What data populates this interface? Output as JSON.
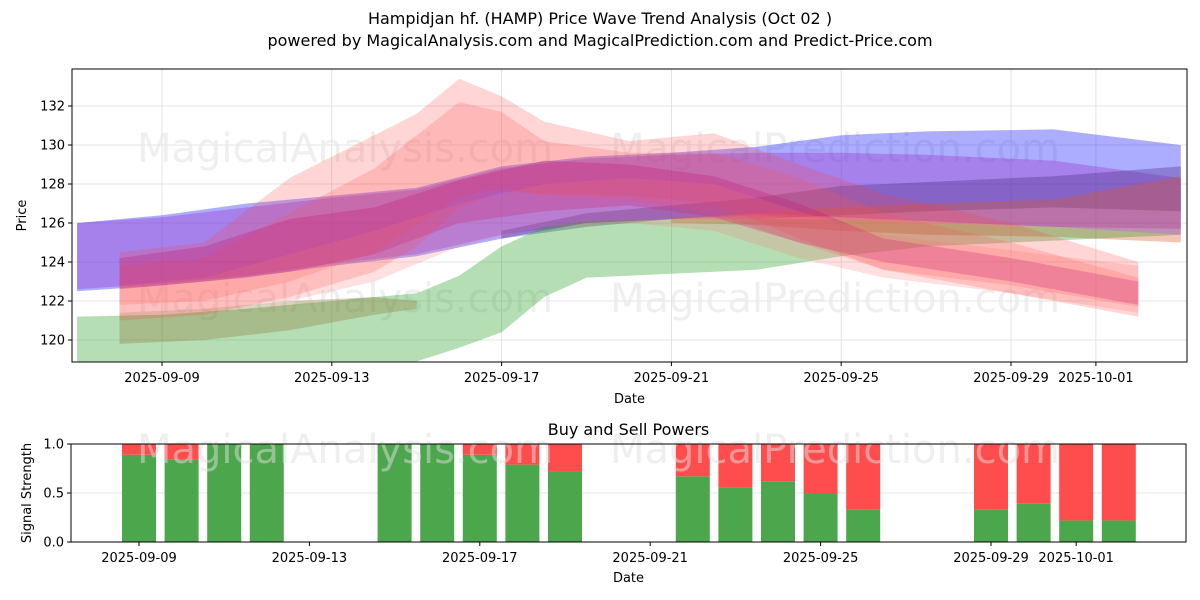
{
  "title": "Hampidjan hf. (HAMP) Price Wave Trend Analysis (Oct 02 )",
  "subtitle": "powered by MagicalAnalysis.com and MagicalPrediction.com and Predict-Price.com",
  "watermarks": [
    "MagicalAnalysis.com",
    "MagicalPrediction.com"
  ],
  "chart_data": [
    {
      "type": "area",
      "title": "",
      "xlabel": "Date",
      "ylabel": "Price",
      "ylim": [
        118.9,
        133.8
      ],
      "xlim": [
        "2025-09-06.8",
        "2025-10-03.2"
      ],
      "yticks": [
        120,
        122,
        124,
        126,
        128,
        130,
        132
      ],
      "xticks": [
        "2025-09-09",
        "2025-09-13",
        "2025-09-17",
        "2025-09-21",
        "2025-09-25",
        "2025-09-29",
        "2025-10-01"
      ],
      "grid": true,
      "series": [
        {
          "name": "blue-band",
          "color": "#0000ff",
          "opacity": 0.32,
          "x": [
            "2025-09-07",
            "2025-09-09",
            "2025-09-11",
            "2025-09-13",
            "2025-09-15",
            "2025-09-17",
            "2025-09-19",
            "2025-09-21",
            "2025-09-23",
            "2025-09-25",
            "2025-09-27",
            "2025-09-30",
            "2025-10-03"
          ],
          "upper": [
            126.0,
            126.4,
            127.0,
            127.4,
            127.8,
            128.9,
            129.4,
            129.6,
            129.9,
            130.5,
            130.7,
            130.8,
            130.0
          ],
          "lower": [
            122.5,
            122.8,
            123.2,
            123.8,
            124.3,
            125.2,
            126.0,
            126.2,
            126.5,
            126.3,
            126.1,
            125.8,
            125.4
          ]
        },
        {
          "name": "purple-band-1",
          "color": "#9b30c8",
          "opacity": 0.35,
          "x": [
            "2025-09-07",
            "2025-09-09",
            "2025-09-11",
            "2025-09-13",
            "2025-09-15",
            "2025-09-17",
            "2025-09-19",
            "2025-09-21",
            "2025-09-23",
            "2025-09-25",
            "2025-09-27",
            "2025-09-30",
            "2025-10-03"
          ],
          "upper": [
            126.0,
            126.3,
            126.8,
            127.3,
            127.7,
            128.8,
            129.3,
            129.5,
            129.6,
            129.6,
            129.5,
            129.2,
            128.3
          ],
          "lower": [
            122.6,
            122.9,
            123.3,
            123.9,
            124.4,
            125.4,
            126.0,
            126.2,
            126.4,
            126.2,
            126.0,
            125.8,
            125.7
          ]
        },
        {
          "name": "dark-purple-band",
          "color": "#4b2a80",
          "opacity": 0.35,
          "x": [
            "2025-09-17",
            "2025-09-19",
            "2025-09-21",
            "2025-09-23",
            "2025-09-25",
            "2025-09-27",
            "2025-09-30",
            "2025-10-03"
          ],
          "upper": [
            125.6,
            126.5,
            126.9,
            127.3,
            127.9,
            128.1,
            128.4,
            128.9
          ],
          "lower": [
            125.2,
            125.8,
            126.2,
            126.2,
            126.4,
            126.6,
            126.8,
            126.6
          ]
        },
        {
          "name": "orange-band",
          "color": "#e0552a",
          "opacity": 0.35,
          "x": [
            "2025-09-21",
            "2025-09-23",
            "2025-09-25",
            "2025-09-27",
            "2025-09-30",
            "2025-10-03"
          ],
          "upper": [
            126.3,
            126.5,
            126.8,
            127.0,
            127.2,
            128.4
          ],
          "lower": [
            126.0,
            125.9,
            125.6,
            125.4,
            125.3,
            125.0
          ]
        },
        {
          "name": "green-band",
          "color": "#2ca02c",
          "opacity": 0.35,
          "x": [
            "2025-09-07",
            "2025-09-09",
            "2025-09-11",
            "2025-09-13",
            "2025-09-15",
            "2025-09-16",
            "2025-09-17",
            "2025-09-18",
            "2025-09-19",
            "2025-09-21",
            "2025-09-23",
            "2025-09-25",
            "2025-09-27",
            "2025-09-30",
            "2025-10-03"
          ],
          "upper": [
            121.2,
            121.3,
            121.6,
            122.0,
            122.4,
            123.3,
            124.8,
            125.8,
            126.1,
            126.2,
            126.2,
            126.2,
            126.0,
            125.8,
            125.4
          ],
          "lower": [
            118.9,
            118.9,
            118.9,
            118.9,
            118.9,
            119.6,
            120.4,
            122.2,
            123.2,
            123.4,
            123.6,
            124.3,
            124.8,
            125.1,
            125.4
          ]
        },
        {
          "name": "olive-band",
          "color": "#8b6a2a",
          "opacity": 0.3,
          "x": [
            "2025-09-08",
            "2025-09-10",
            "2025-09-12",
            "2025-09-14",
            "2025-09-15"
          ],
          "upper": [
            121.4,
            121.6,
            122.0,
            122.2,
            122.0
          ],
          "lower": [
            119.8,
            120.0,
            120.5,
            121.3,
            121.6
          ]
        },
        {
          "name": "red-band-1",
          "color": "#ff4040",
          "opacity": 0.22,
          "x": [
            "2025-09-08",
            "2025-09-10",
            "2025-09-12",
            "2025-09-14",
            "2025-09-15",
            "2025-09-16",
            "2025-09-17",
            "2025-09-18",
            "2025-09-20",
            "2025-09-22",
            "2025-09-24",
            "2025-09-26",
            "2025-09-29",
            "2025-10-02"
          ],
          "upper": [
            124.5,
            125.0,
            128.3,
            130.5,
            131.6,
            133.4,
            132.5,
            131.2,
            130.2,
            130.6,
            129.0,
            127.5,
            126.0,
            124.0
          ],
          "lower": [
            121.0,
            121.3,
            122.2,
            123.5,
            124.8,
            126.8,
            127.6,
            127.5,
            127.4,
            127.0,
            125.2,
            123.6,
            122.4,
            121.2
          ]
        },
        {
          "name": "red-band-2",
          "color": "#ff5050",
          "opacity": 0.22,
          "x": [
            "2025-09-08",
            "2025-09-10",
            "2025-09-12",
            "2025-09-14",
            "2025-09-16",
            "2025-09-17",
            "2025-09-18",
            "2025-09-20",
            "2025-09-22",
            "2025-09-24",
            "2025-09-26",
            "2025-09-29",
            "2025-10-02"
          ],
          "upper": [
            123.8,
            124.2,
            126.5,
            128.8,
            132.2,
            131.7,
            130.2,
            129.6,
            129.6,
            128.3,
            126.5,
            125.0,
            123.2
          ],
          "lower": [
            121.8,
            122.0,
            123.0,
            124.5,
            127.3,
            127.8,
            127.4,
            127.2,
            126.5,
            125.0,
            123.6,
            122.8,
            121.7
          ]
        },
        {
          "name": "magenta-band",
          "color": "#c0207a",
          "opacity": 0.32,
          "x": [
            "2025-09-08",
            "2025-09-10",
            "2025-09-12",
            "2025-09-14",
            "2025-09-16",
            "2025-09-18",
            "2025-09-20",
            "2025-09-22",
            "2025-09-24",
            "2025-09-26",
            "2025-09-29",
            "2025-10-02"
          ],
          "upper": [
            124.2,
            124.8,
            126.2,
            126.8,
            128.2,
            129.2,
            129.0,
            128.4,
            127.0,
            125.2,
            124.2,
            123.0
          ],
          "lower": [
            122.6,
            123.0,
            123.5,
            124.4,
            126.0,
            126.6,
            126.9,
            126.3,
            125.0,
            124.0,
            123.0,
            121.8
          ]
        },
        {
          "name": "pink-band",
          "color": "#ff7070",
          "opacity": 0.22,
          "x": [
            "2025-09-08",
            "2025-09-10",
            "2025-09-12",
            "2025-09-14",
            "2025-09-16",
            "2025-09-18",
            "2025-09-20",
            "2025-09-22",
            "2025-09-24",
            "2025-09-26",
            "2025-09-29",
            "2025-10-02"
          ],
          "upper": [
            122.8,
            123.2,
            124.4,
            125.6,
            127.0,
            128.0,
            128.3,
            128.0,
            126.6,
            125.4,
            124.6,
            123.8
          ],
          "lower": [
            121.4,
            121.6,
            122.0,
            123.0,
            124.8,
            125.8,
            126.0,
            125.6,
            124.2,
            123.2,
            122.4,
            121.4
          ]
        }
      ]
    },
    {
      "type": "bar",
      "title": "Buy and Sell Powers",
      "xlabel": "Date",
      "ylabel": "Signal Strength",
      "ylim": [
        0,
        1.0
      ],
      "yticks": [
        "0.0",
        "0.5",
        "1.0"
      ],
      "xticks": [
        "2025-09-09",
        "2025-09-13",
        "2025-09-17",
        "2025-09-21",
        "2025-09-25",
        "2025-09-29",
        "2025-10-01"
      ],
      "grid": true,
      "categories": [
        "2025-09-09",
        "2025-09-10",
        "2025-09-11",
        "2025-09-12",
        "2025-09-15",
        "2025-09-16",
        "2025-09-17",
        "2025-09-18",
        "2025-09-19",
        "2025-09-22",
        "2025-09-23",
        "2025-09-24",
        "2025-09-25",
        "2025-09-26",
        "2025-09-29",
        "2025-09-30",
        "2025-10-01",
        "2025-10-02"
      ],
      "series": [
        {
          "name": "Buy",
          "color": "#4ca64c",
          "values": [
            0.89,
            0.84,
            1.0,
            1.0,
            1.0,
            1.0,
            0.89,
            0.79,
            0.72,
            0.67,
            0.56,
            0.62,
            0.5,
            0.33,
            0.33,
            0.39,
            0.22,
            0.22
          ]
        },
        {
          "name": "Sell",
          "color": "#ff4c4c",
          "values": [
            0.11,
            0.16,
            0.0,
            0.0,
            0.0,
            0.0,
            0.11,
            0.21,
            0.28,
            0.33,
            0.44,
            0.38,
            0.5,
            0.67,
            0.67,
            0.61,
            0.78,
            0.78
          ]
        }
      ]
    }
  ]
}
